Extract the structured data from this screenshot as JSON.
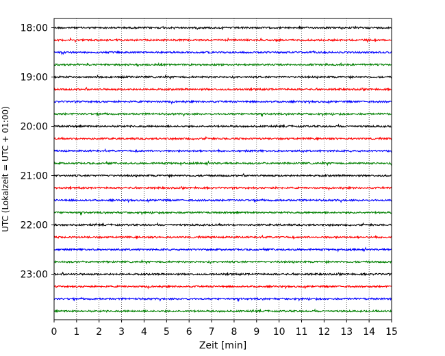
{
  "chart_data": {
    "type": "line",
    "xlabel": "Zeit  [min]",
    "ylabel": "UTC (Lokalzeit = UTC + 01:00)",
    "xlim": [
      0,
      15
    ],
    "x_ticks": [
      "0",
      "1",
      "2",
      "3",
      "4",
      "5",
      "6",
      "7",
      "8",
      "9",
      "10",
      "11",
      "12",
      "13",
      "14",
      "15"
    ],
    "y_ticks": [
      "18:00",
      "19:00",
      "20:00",
      "21:00",
      "22:00",
      "23:00"
    ],
    "grid": "vertical dotted",
    "rows_per_hour": 4,
    "trace_start_times": [
      "18:00",
      "18:15",
      "18:30",
      "18:45",
      "19:00",
      "19:15",
      "19:30",
      "19:45",
      "20:00",
      "20:15",
      "20:30",
      "20:45",
      "21:00",
      "21:15",
      "21:30",
      "21:45",
      "22:00",
      "22:15",
      "22:30",
      "22:45",
      "23:00",
      "23:15",
      "23:30",
      "23:45"
    ],
    "series_colors": [
      "#000000",
      "#ff0000",
      "#0000ff",
      "#008000"
    ]
  }
}
